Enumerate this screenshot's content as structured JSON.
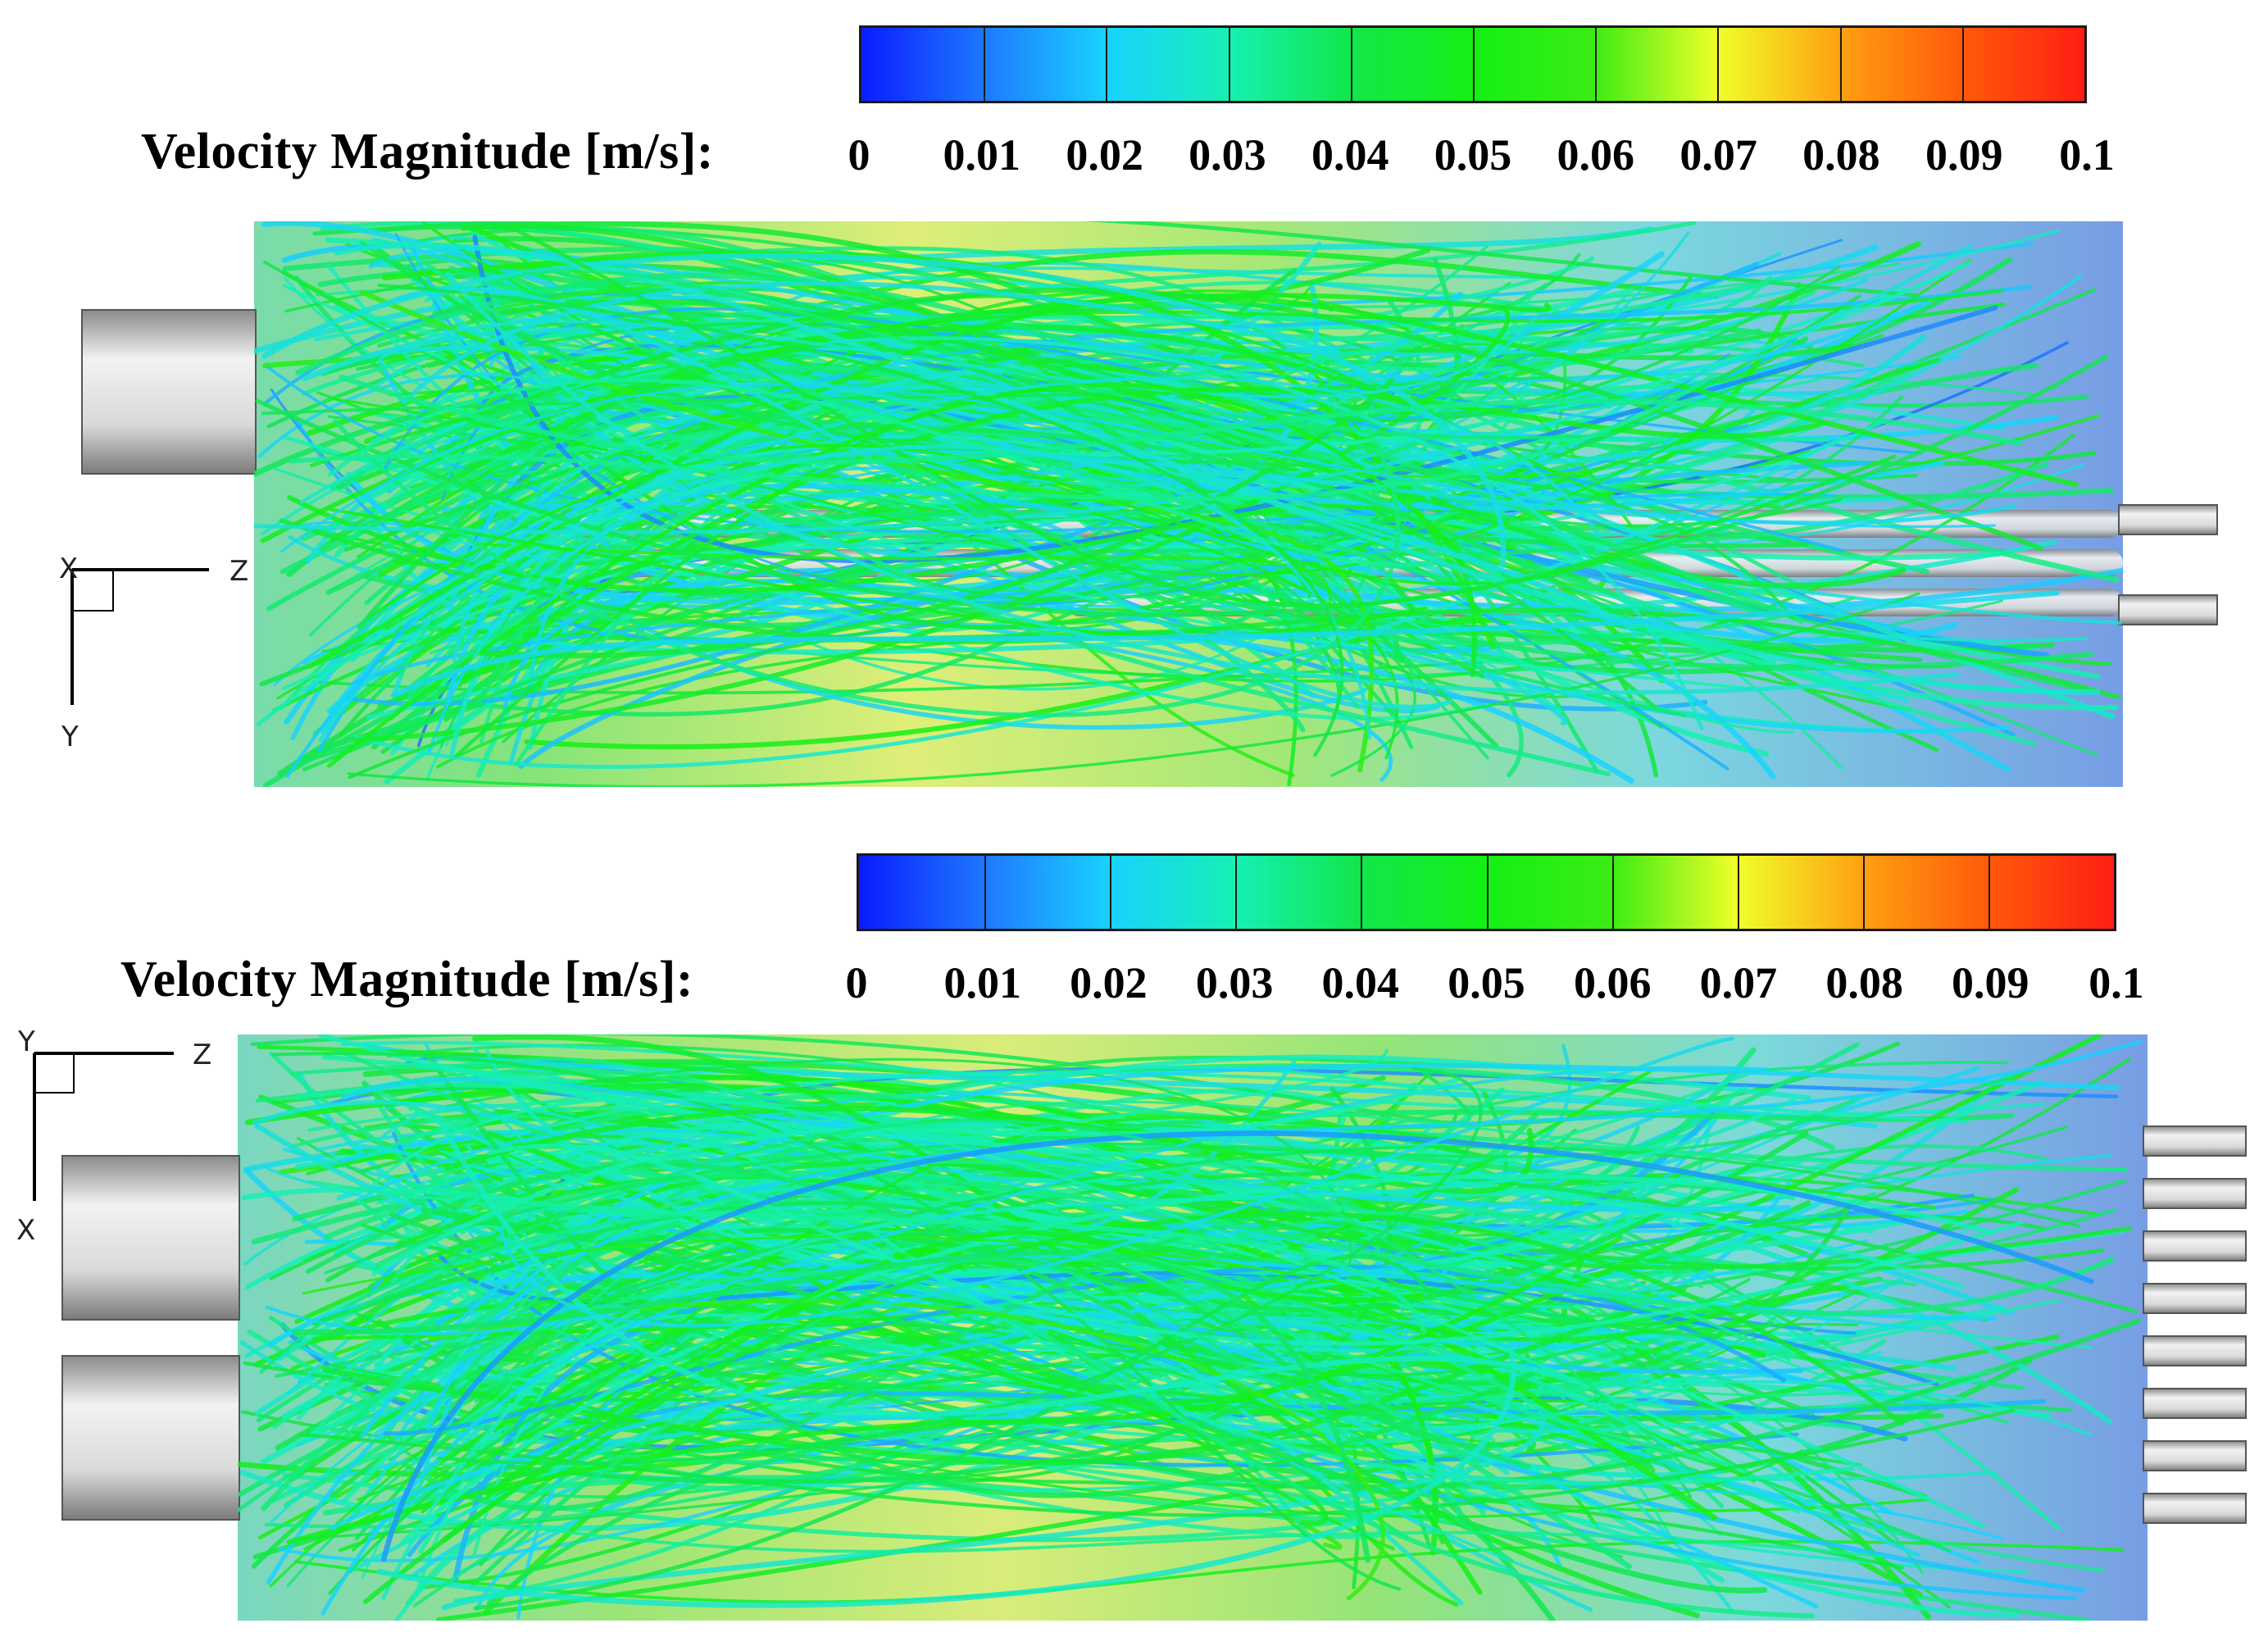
{
  "panels": [
    {
      "colorbar": {
        "title": "Velocity Magnitude [m/s]:",
        "ticks": [
          "0",
          "0.01",
          "0.02",
          "0.03",
          "0.04",
          "0.05",
          "0.06",
          "0.07",
          "0.08",
          "0.09",
          "0.1"
        ],
        "range": [
          0,
          0.1
        ],
        "colormap": [
          "#0a1cff",
          "#1e78ff",
          "#19d2ff",
          "#16f0b4",
          "#12e64a",
          "#14f014",
          "#3cec14",
          "#f0ff28",
          "#ffa012",
          "#ff5a0a",
          "#ff1e14"
        ]
      },
      "axes": {
        "horizontal": "Z",
        "vertical": "Y",
        "origin": "X"
      }
    },
    {
      "colorbar": {
        "title": "Velocity Magnitude [m/s]:",
        "ticks": [
          "0",
          "0.01",
          "0.02",
          "0.03",
          "0.04",
          "0.05",
          "0.06",
          "0.07",
          "0.08",
          "0.09",
          "0.1"
        ],
        "range": [
          0,
          0.1
        ],
        "colormap": [
          "#0a1cff",
          "#1e78ff",
          "#19d2ff",
          "#16f0b4",
          "#12e64a",
          "#14f014",
          "#3cec14",
          "#f0ff28",
          "#ffa012",
          "#ff5a0a",
          "#ff1e14"
        ]
      },
      "axes": {
        "horizontal": "Z",
        "vertical": "X",
        "origin": "Y"
      }
    }
  ]
}
